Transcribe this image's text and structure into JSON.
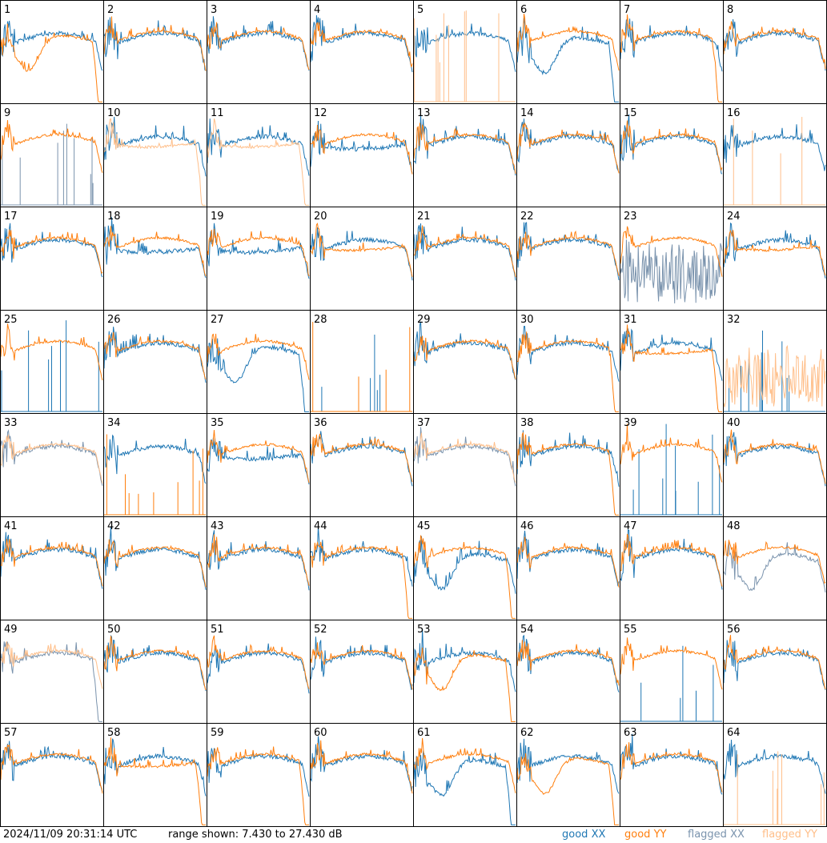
{
  "colors": {
    "good_xx": "#1f77b4",
    "good_yy": "#ff7f0e",
    "flagged_xx": "#7a93ad",
    "flagged_yy": "#ffbf8a",
    "grid": "#000000"
  },
  "footer": {
    "timestamp": "2024/11/09 20:31:14 UTC",
    "range_text": "range shown: 7.430 to 27.430 dB",
    "legend": [
      {
        "word": "good",
        "pol": "XX",
        "key": "good_xx"
      },
      {
        "word": "good",
        "pol": "YY",
        "key": "good_yy"
      },
      {
        "word": "flagged",
        "pol": "XX",
        "key": "flagged_xx"
      },
      {
        "word": "flagged",
        "pol": "YY",
        "key": "flagged_yy"
      }
    ]
  },
  "chart_data": {
    "type": "line",
    "layout": "8x8 small multiples",
    "ylim": [
      7.43,
      27.43
    ],
    "y_unit": "dB",
    "panels": [
      {
        "n": 1,
        "xx": {
          "s": "good",
          "p": "flat"
        },
        "yy": {
          "s": "good",
          "p": "bowl",
          "drop": true
        }
      },
      {
        "n": 2,
        "xx": {
          "s": "good",
          "p": "flat"
        },
        "yy": {
          "s": "good",
          "p": "flat"
        }
      },
      {
        "n": 3,
        "xx": {
          "s": "good",
          "p": "flat"
        },
        "yy": {
          "s": "good",
          "p": "flat"
        }
      },
      {
        "n": 4,
        "xx": {
          "s": "good",
          "p": "flat"
        },
        "yy": {
          "s": "good",
          "p": "flat"
        }
      },
      {
        "n": 5,
        "xx": {
          "s": "good",
          "p": "flat"
        },
        "yy": {
          "s": "flagged",
          "p": "spikes"
        }
      },
      {
        "n": 6,
        "xx": {
          "s": "good",
          "p": "bowl",
          "drop": true
        },
        "yy": {
          "s": "good",
          "p": "flat"
        }
      },
      {
        "n": 7,
        "xx": {
          "s": "good",
          "p": "flat"
        },
        "yy": {
          "s": "good",
          "p": "flat",
          "drop": true
        }
      },
      {
        "n": 8,
        "xx": {
          "s": "good",
          "p": "flat"
        },
        "yy": {
          "s": "good",
          "p": "flat"
        }
      },
      {
        "n": 9,
        "xx": {
          "s": "flagged",
          "p": "spikes"
        },
        "yy": {
          "s": "good",
          "p": "flat"
        }
      },
      {
        "n": 10,
        "xx": {
          "s": "good",
          "p": "flat"
        },
        "yy": {
          "s": "flagged",
          "p": "sag",
          "drop": true
        }
      },
      {
        "n": 11,
        "xx": {
          "s": "good",
          "p": "flat"
        },
        "yy": {
          "s": "flagged",
          "p": "sag",
          "drop": true
        }
      },
      {
        "n": 12,
        "xx": {
          "s": "good",
          "p": "sag"
        },
        "yy": {
          "s": "good",
          "p": "flat"
        }
      },
      {
        "n": 13,
        "xx": {
          "s": "good",
          "p": "flat"
        },
        "yy": {
          "s": "good",
          "p": "flat"
        }
      },
      {
        "n": 14,
        "xx": {
          "s": "good",
          "p": "flat"
        },
        "yy": {
          "s": "good",
          "p": "flat"
        }
      },
      {
        "n": 15,
        "xx": {
          "s": "good",
          "p": "flat"
        },
        "yy": {
          "s": "good",
          "p": "flat"
        }
      },
      {
        "n": 16,
        "xx": {
          "s": "good",
          "p": "flat"
        },
        "yy": {
          "s": "flagged",
          "p": "spikes"
        }
      },
      {
        "n": 17,
        "xx": {
          "s": "good",
          "p": "flat"
        },
        "yy": {
          "s": "good",
          "p": "flat"
        }
      },
      {
        "n": 18,
        "xx": {
          "s": "good",
          "p": "sag"
        },
        "yy": {
          "s": "good",
          "p": "flat"
        }
      },
      {
        "n": 19,
        "xx": {
          "s": "good",
          "p": "sag"
        },
        "yy": {
          "s": "good",
          "p": "flat"
        }
      },
      {
        "n": 20,
        "xx": {
          "s": "good",
          "p": "flat"
        },
        "yy": {
          "s": "good",
          "p": "sag"
        }
      },
      {
        "n": 21,
        "xx": {
          "s": "good",
          "p": "flat"
        },
        "yy": {
          "s": "good",
          "p": "flat"
        }
      },
      {
        "n": 22,
        "xx": {
          "s": "good",
          "p": "flat"
        },
        "yy": {
          "s": "good",
          "p": "flat"
        }
      },
      {
        "n": 23,
        "xx": {
          "s": "flagged",
          "p": "noise"
        },
        "yy": {
          "s": "good",
          "p": "flat"
        }
      },
      {
        "n": 24,
        "xx": {
          "s": "good",
          "p": "flat"
        },
        "yy": {
          "s": "good",
          "p": "sag"
        }
      },
      {
        "n": 25,
        "xx": {
          "s": "good",
          "p": "spikes"
        },
        "yy": {
          "s": "good",
          "p": "flat"
        }
      },
      {
        "n": 26,
        "xx": {
          "s": "good",
          "p": "flat"
        },
        "yy": {
          "s": "good",
          "p": "flat"
        }
      },
      {
        "n": 27,
        "xx": {
          "s": "good",
          "p": "bowl",
          "drop": true
        },
        "yy": {
          "s": "good",
          "p": "flat"
        }
      },
      {
        "n": 28,
        "xx": {
          "s": "good",
          "p": "spikes"
        },
        "yy": {
          "s": "good",
          "p": "spikes"
        }
      },
      {
        "n": 29,
        "xx": {
          "s": "good",
          "p": "flat"
        },
        "yy": {
          "s": "good",
          "p": "flat"
        }
      },
      {
        "n": 30,
        "xx": {
          "s": "good",
          "p": "flat"
        },
        "yy": {
          "s": "good",
          "p": "flat",
          "drop": true
        }
      },
      {
        "n": 31,
        "xx": {
          "s": "good",
          "p": "flat"
        },
        "yy": {
          "s": "good",
          "p": "sag",
          "drop": true
        }
      },
      {
        "n": 32,
        "xx": {
          "s": "good",
          "p": "spikes"
        },
        "yy": {
          "s": "flagged",
          "p": "noise"
        }
      },
      {
        "n": 33,
        "xx": {
          "s": "flagged",
          "p": "flat"
        },
        "yy": {
          "s": "flagged",
          "p": "flat"
        }
      },
      {
        "n": 34,
        "xx": {
          "s": "good",
          "p": "flat"
        },
        "yy": {
          "s": "good",
          "p": "spikes"
        }
      },
      {
        "n": 35,
        "xx": {
          "s": "good",
          "p": "sag"
        },
        "yy": {
          "s": "good",
          "p": "flat"
        }
      },
      {
        "n": 36,
        "xx": {
          "s": "good",
          "p": "flat"
        },
        "yy": {
          "s": "good",
          "p": "flat"
        }
      },
      {
        "n": 37,
        "xx": {
          "s": "flagged",
          "p": "flat"
        },
        "yy": {
          "s": "flagged",
          "p": "flat"
        }
      },
      {
        "n": 38,
        "xx": {
          "s": "good",
          "p": "flat"
        },
        "yy": {
          "s": "good",
          "p": "flat",
          "drop": true
        }
      },
      {
        "n": 39,
        "xx": {
          "s": "good",
          "p": "spikes"
        },
        "yy": {
          "s": "good",
          "p": "flat"
        }
      },
      {
        "n": 40,
        "xx": {
          "s": "good",
          "p": "flat"
        },
        "yy": {
          "s": "good",
          "p": "flat"
        }
      },
      {
        "n": 41,
        "xx": {
          "s": "good",
          "p": "flat"
        },
        "yy": {
          "s": "good",
          "p": "flat"
        }
      },
      {
        "n": 42,
        "xx": {
          "s": "good",
          "p": "flat"
        },
        "yy": {
          "s": "good",
          "p": "flat"
        }
      },
      {
        "n": 43,
        "xx": {
          "s": "good",
          "p": "flat"
        },
        "yy": {
          "s": "good",
          "p": "flat"
        }
      },
      {
        "n": 44,
        "xx": {
          "s": "good",
          "p": "flat"
        },
        "yy": {
          "s": "good",
          "p": "flat",
          "drop": true
        }
      },
      {
        "n": 45,
        "xx": {
          "s": "good",
          "p": "bowl"
        },
        "yy": {
          "s": "good",
          "p": "flat",
          "drop": true
        }
      },
      {
        "n": 46,
        "xx": {
          "s": "good",
          "p": "flat"
        },
        "yy": {
          "s": "good",
          "p": "flat"
        }
      },
      {
        "n": 47,
        "xx": {
          "s": "good",
          "p": "flat"
        },
        "yy": {
          "s": "good",
          "p": "flat"
        }
      },
      {
        "n": 48,
        "xx": {
          "s": "flagged",
          "p": "bowl"
        },
        "yy": {
          "s": "good",
          "p": "flat"
        }
      },
      {
        "n": 49,
        "xx": {
          "s": "flagged",
          "p": "flat",
          "drop": true
        },
        "yy": {
          "s": "flagged",
          "p": "flat"
        }
      },
      {
        "n": 50,
        "xx": {
          "s": "good",
          "p": "flat"
        },
        "yy": {
          "s": "good",
          "p": "flat"
        }
      },
      {
        "n": 51,
        "xx": {
          "s": "good",
          "p": "flat"
        },
        "yy": {
          "s": "good",
          "p": "flat"
        }
      },
      {
        "n": 52,
        "xx": {
          "s": "good",
          "p": "flat"
        },
        "yy": {
          "s": "good",
          "p": "flat"
        }
      },
      {
        "n": 53,
        "xx": {
          "s": "good",
          "p": "flat"
        },
        "yy": {
          "s": "good",
          "p": "bowl",
          "drop": true
        }
      },
      {
        "n": 54,
        "xx": {
          "s": "good",
          "p": "flat"
        },
        "yy": {
          "s": "good",
          "p": "flat"
        }
      },
      {
        "n": 55,
        "xx": {
          "s": "good",
          "p": "spikes"
        },
        "yy": {
          "s": "good",
          "p": "flat"
        }
      },
      {
        "n": 56,
        "xx": {
          "s": "good",
          "p": "flat"
        },
        "yy": {
          "s": "good",
          "p": "flat"
        }
      },
      {
        "n": 57,
        "xx": {
          "s": "good",
          "p": "flat"
        },
        "yy": {
          "s": "good",
          "p": "flat"
        }
      },
      {
        "n": 58,
        "xx": {
          "s": "good",
          "p": "flat"
        },
        "yy": {
          "s": "good",
          "p": "sag",
          "drop": true
        }
      },
      {
        "n": 59,
        "xx": {
          "s": "good",
          "p": "flat"
        },
        "yy": {
          "s": "good",
          "p": "flat",
          "drop": true
        }
      },
      {
        "n": 60,
        "xx": {
          "s": "good",
          "p": "flat"
        },
        "yy": {
          "s": "good",
          "p": "flat"
        }
      },
      {
        "n": 61,
        "xx": {
          "s": "good",
          "p": "bowl",
          "drop": true
        },
        "yy": {
          "s": "good",
          "p": "flat"
        }
      },
      {
        "n": 62,
        "xx": {
          "s": "good",
          "p": "flat"
        },
        "yy": {
          "s": "good",
          "p": "bowl",
          "drop": true
        }
      },
      {
        "n": 63,
        "xx": {
          "s": "good",
          "p": "flat"
        },
        "yy": {
          "s": "good",
          "p": "flat"
        }
      },
      {
        "n": 64,
        "xx": {
          "s": "good",
          "p": "flat"
        },
        "yy": {
          "s": "flagged",
          "p": "spikes"
        }
      }
    ]
  }
}
